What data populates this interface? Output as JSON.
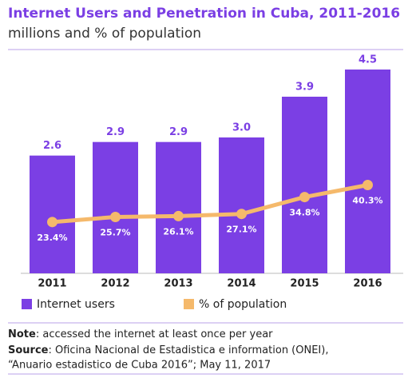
{
  "chart_data": {
    "type": "bar-line",
    "title": "Internet Users and Penetration in Cuba, 2011-2016",
    "subtitle": "millions and % of population",
    "categories": [
      "2011",
      "2012",
      "2013",
      "2014",
      "2015",
      "2016"
    ],
    "series": [
      {
        "name": "Internet users",
        "color": "#7b3fe4",
        "type": "bar",
        "values": [
          2.6,
          2.9,
          2.9,
          3.0,
          3.9,
          4.5
        ],
        "value_labels": [
          "2.6",
          "2.9",
          "2.9",
          "3.0",
          "3.9",
          "4.5"
        ]
      },
      {
        "name": "% of population",
        "color": "#f5b96b",
        "type": "line",
        "axis": "y2",
        "values": [
          23.4,
          25.7,
          26.1,
          27.1,
          34.8,
          40.3
        ],
        "value_labels": [
          "23.4%",
          "25.7%",
          "26.1%",
          "27.1%",
          "34.8%",
          "40.3%"
        ]
      }
    ],
    "ylim": [
      0,
      4.5
    ],
    "y2lim": [
      0,
      93
    ],
    "legend": "bottom-left",
    "note_label": "Note",
    "note": ": accessed the internet at least once per year",
    "source_label": "Source",
    "source_lines": [
      ": Oficina Nacional de Estadistica e information (ONEI),",
      "“Anuario estadistico de Cuba 2016”; May 11, 2017"
    ]
  }
}
